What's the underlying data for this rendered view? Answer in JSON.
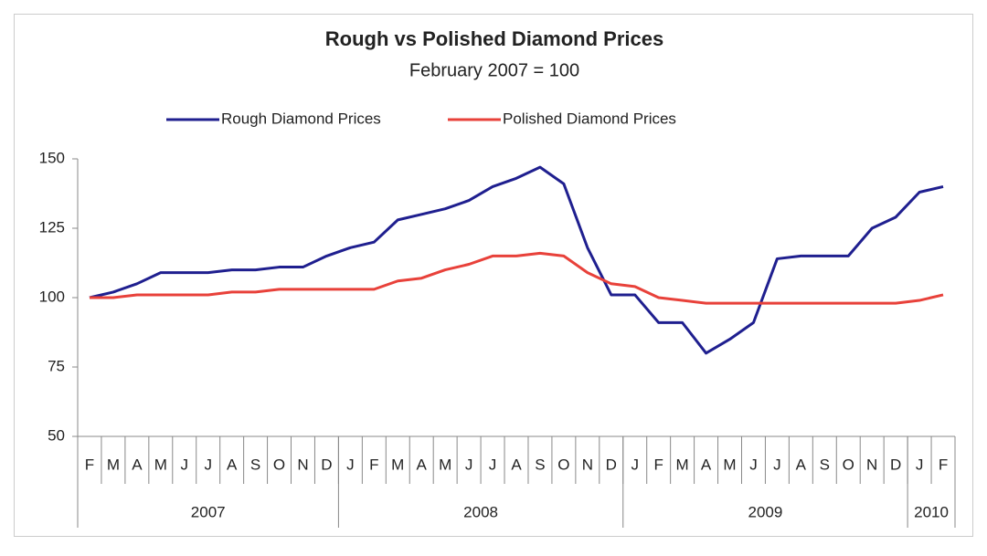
{
  "chart_data": {
    "type": "line",
    "title": "Rough vs Polished Diamond Prices",
    "subtitle": "February 2007 = 100",
    "categories": [
      "F",
      "M",
      "A",
      "M",
      "J",
      "J",
      "A",
      "S",
      "O",
      "N",
      "D",
      "J",
      "F",
      "M",
      "A",
      "M",
      "J",
      "J",
      "A",
      "S",
      "O",
      "N",
      "D",
      "J",
      "F",
      "M",
      "A",
      "M",
      "J",
      "J",
      "A",
      "S",
      "O",
      "N",
      "D",
      "J",
      "F"
    ],
    "groups": [
      {
        "label": "2007",
        "size": 11
      },
      {
        "label": "2008",
        "size": 12
      },
      {
        "label": "2009",
        "size": 12
      },
      {
        "label": "2010",
        "size": 2
      }
    ],
    "series": [
      {
        "name": "Rough Diamond Prices",
        "color": "#1f1f8f",
        "values": [
          100,
          102,
          105,
          109,
          109,
          109,
          110,
          110,
          111,
          111,
          115,
          118,
          120,
          128,
          130,
          132,
          135,
          140,
          143,
          147,
          141,
          118,
          101,
          101,
          91,
          91,
          80,
          85,
          91,
          114,
          115,
          115,
          115,
          125,
          129,
          138,
          140
        ]
      },
      {
        "name": "Polished Diamond Prices",
        "color": "#e8413a",
        "values": [
          100,
          100,
          101,
          101,
          101,
          101,
          102,
          102,
          103,
          103,
          103,
          103,
          103,
          106,
          107,
          110,
          112,
          115,
          115,
          116,
          115,
          109,
          105,
          104,
          100,
          99,
          98,
          98,
          98,
          98,
          98,
          98,
          98,
          98,
          98,
          99,
          101
        ]
      }
    ],
    "ylim": [
      50,
      150
    ],
    "yticks": [
      50,
      75,
      100,
      125,
      150
    ],
    "legend": "top"
  }
}
